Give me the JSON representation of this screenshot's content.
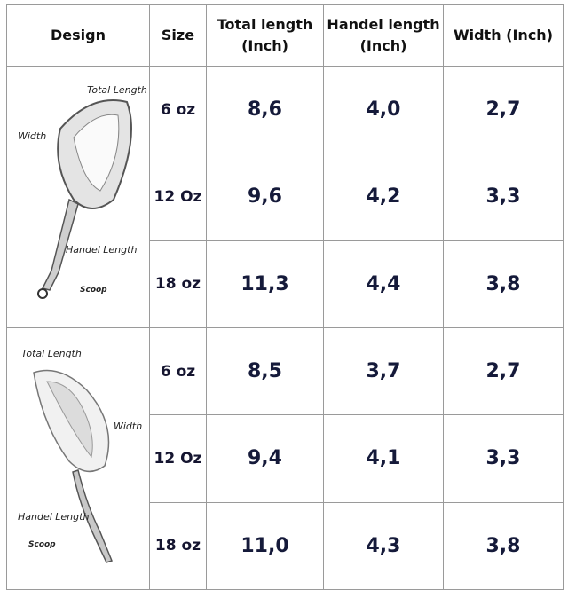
{
  "table": {
    "header": [
      "Design",
      "Size",
      "Total length (Inch)",
      "Handel length (Inch)",
      "Width (Inch)"
    ],
    "groups": [
      {
        "design": {
          "labels": [
            "Total Length",
            "Width",
            "Handel Length"
          ],
          "logo": "Scoop"
        },
        "rows": [
          [
            "6 oz",
            "8,6",
            "4,0",
            "2,7"
          ],
          [
            "12 Oz",
            "9,6",
            "4,2",
            "3,3"
          ],
          [
            "18 oz",
            "11,3",
            "4,4",
            "3,8"
          ]
        ]
      },
      {
        "design": {
          "labels": [
            "Total Length",
            "Width",
            "Handel Length"
          ],
          "logo": "Scoop"
        },
        "rows": [
          [
            "6 oz",
            "8,5",
            "3,7",
            "2,7"
          ],
          [
            "12 Oz",
            "9,4",
            "4,1",
            "3,3"
          ],
          [
            "18 oz",
            "11,0",
            "4,3",
            "3,8"
          ]
        ]
      }
    ]
  }
}
